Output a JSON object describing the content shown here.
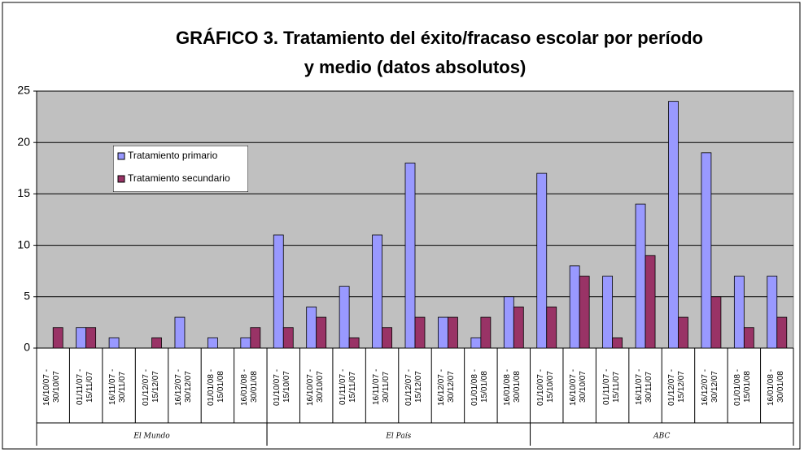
{
  "chart_data": {
    "type": "bar",
    "title": "GRÁFICO 3. Tratamiento del éxito/fracaso escolar por período",
    "subtitle": "y medio (datos absolutos)",
    "groups": [
      {
        "name": "El Mundo",
        "size": 7
      },
      {
        "name": "El País",
        "size": 8
      },
      {
        "name": "ABC",
        "size": 8
      }
    ],
    "categories": [
      "16/10/07 - 30/10/07",
      "01/11/07 - 15/11/07",
      "16/11/07 - 30/11/07",
      "01/12/07 - 15/12/07",
      "16/12/07 - 30/12/07",
      "01/01/08 - 15/01/08",
      "16/01/08 - 30/01/08",
      "01/10/07 - 15/10/07",
      "16/10/07 - 30/10/07",
      "01/11/07 - 15/11/07",
      "16/11/07 - 30/11/07",
      "01/12/07 - 15/12/07",
      "16/12/07 - 30/12/07",
      "01/01/08 - 15/01/08",
      "16/01/08 - 30/01/08",
      "01/10/07 - 15/10/07",
      "16/10/07 - 30/10/07",
      "01/11/07 - 15/11/07",
      "16/11/07 - 30/11/07",
      "01/12/07 - 15/12/07",
      "16/12/07 - 30/12/07",
      "01/01/08 - 15/01/08",
      "16/01/08 - 30/01/08"
    ],
    "series": [
      {
        "name": "Tratamiento primario",
        "color": "#9999ff",
        "values": [
          0,
          2,
          1,
          0,
          3,
          1,
          1,
          11,
          4,
          6,
          11,
          18,
          3,
          1,
          5,
          17,
          8,
          7,
          14,
          24,
          19,
          7,
          7
        ]
      },
      {
        "name": "Tratamiento secundario",
        "color": "#993366",
        "values": [
          2,
          2,
          0,
          1,
          0,
          0,
          2,
          2,
          3,
          1,
          2,
          3,
          3,
          3,
          4,
          4,
          7,
          1,
          9,
          3,
          5,
          2,
          3
        ]
      }
    ],
    "ylim": [
      0,
      25
    ],
    "yticks": [
      0,
      5,
      10,
      15,
      20,
      25
    ],
    "grid": true,
    "legend": "left"
  }
}
